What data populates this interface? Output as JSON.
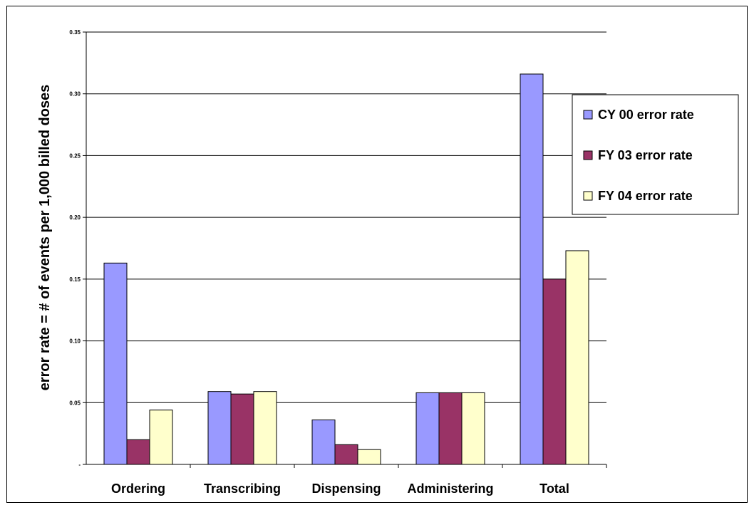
{
  "chart_data": {
    "type": "bar",
    "title": "",
    "xlabel": "",
    "ylabel": "error rate = # of events per 1,000 billed doses",
    "categories": [
      "Ordering",
      "Transcribing",
      "Dispensing",
      "Administering",
      "Total"
    ],
    "series": [
      {
        "name": "CY 00 error rate",
        "color": "#9999ff",
        "values": [
          0.163,
          0.059,
          0.036,
          0.058,
          0.316
        ]
      },
      {
        "name": "FY 03 error rate",
        "color": "#993366",
        "values": [
          0.02,
          0.057,
          0.016,
          0.058,
          0.15
        ]
      },
      {
        "name": "FY 04 error rate",
        "color": "#ffffcc",
        "values": [
          0.044,
          0.059,
          0.012,
          0.058,
          0.173
        ]
      }
    ],
    "ylim": [
      0,
      0.35
    ],
    "yticks": [
      {
        "value": 0,
        "label": "-"
      },
      {
        "value": 0.05,
        "label": "0.05"
      },
      {
        "value": 0.1,
        "label": "0.10"
      },
      {
        "value": 0.15,
        "label": "0.15"
      },
      {
        "value": 0.2,
        "label": "0.20"
      },
      {
        "value": 0.25,
        "label": "0.25"
      },
      {
        "value": 0.3,
        "label": "0.30"
      },
      {
        "value": 0.35,
        "label": "0.35"
      }
    ],
    "grid": true,
    "legend_position": "top-right"
  }
}
